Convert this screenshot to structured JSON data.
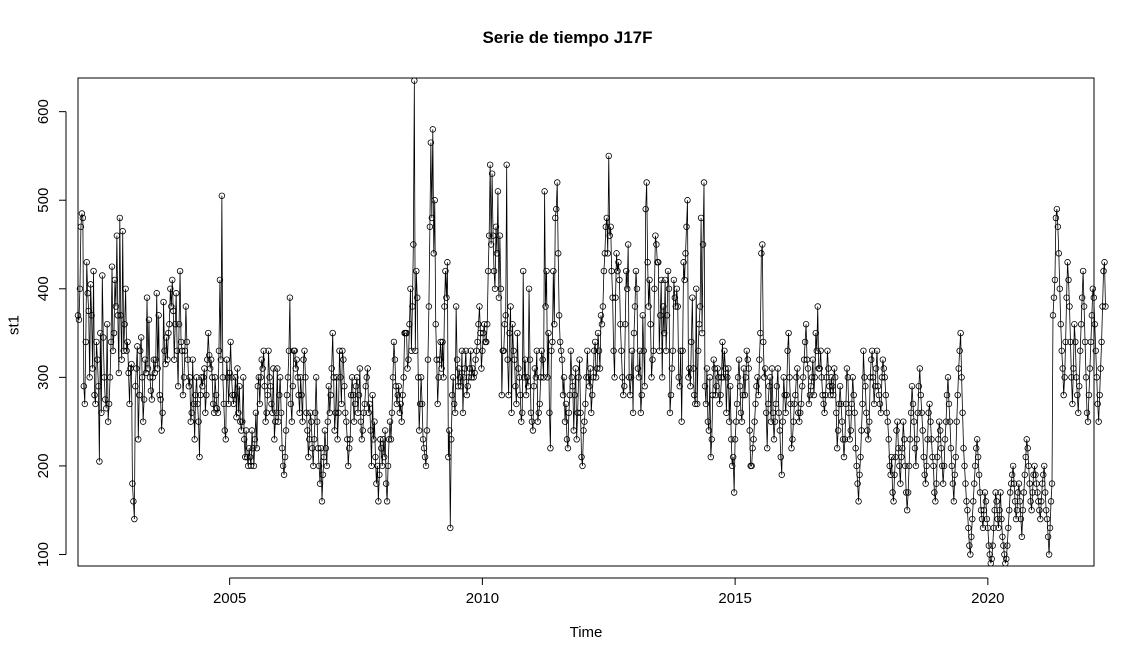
{
  "chart_data": {
    "type": "line",
    "title": "Serie de tiempo J17F",
    "xlabel": "Time",
    "ylabel": "st1",
    "xlim": [
      2002.0,
      2022.1
    ],
    "ylim": [
      87,
      638
    ],
    "x_ticks": [
      2005,
      2010,
      2015,
      2020
    ],
    "y_ticks": [
      100,
      200,
      300,
      400,
      500,
      600
    ],
    "markers": "open-circle",
    "grid": false,
    "legend": "none",
    "series": [
      {
        "start": 2002.0,
        "frequency": 52,
        "values": [
          370,
          365,
          400,
          470,
          485,
          480,
          290,
          270,
          340,
          430,
          395,
          375,
          300,
          405,
          370,
          310,
          420,
          280,
          270,
          340,
          320,
          290,
          205,
          350,
          260,
          415,
          345,
          300,
          275,
          265,
          360,
          250,
          270,
          300,
          340,
          425,
          330,
          350,
          410,
          380,
          460,
          370,
          305,
          480,
          370,
          320,
          465,
          330,
          360,
          400,
          330,
          340,
          305,
          270,
          310,
          315,
          180,
          160,
          140,
          290,
          310,
          335,
          230,
          280,
          330,
          345,
          300,
          250,
          275,
          320,
          305,
          390,
          310,
          365,
          300,
          285,
          275,
          300,
          320,
          305,
          320,
          395,
          310,
          370,
          280,
          275,
          240,
          260,
          385,
          330,
          315,
          345,
          320,
          350,
          360,
          400,
          380,
          410,
          375,
          320,
          360,
          395,
          330,
          290,
          360,
          420,
          340,
          330,
          280,
          300,
          330,
          380,
          340,
          320,
          290,
          300,
          250,
          260,
          320,
          270,
          230,
          280,
          300,
          270,
          250,
          210,
          280,
          300,
          290,
          300,
          310,
          260,
          280,
          320,
          350,
          325,
          310,
          320,
          300,
          270,
          260,
          300,
          280,
          265,
          260,
          330,
          410,
          320,
          505,
          300,
          270,
          240,
          230,
          320,
          300,
          270,
          305,
          340,
          300,
          280,
          270,
          280,
          300,
          255,
          310,
          260,
          290,
          250,
          240,
          250,
          300,
          230,
          210,
          240,
          210,
          200,
          220,
          210,
          200,
          240,
          220,
          200,
          230,
          260,
          220,
          290,
          300,
          270,
          300,
          320,
          310,
          330,
          290,
          250,
          260,
          280,
          330,
          300,
          290,
          270,
          260,
          310,
          230,
          250,
          260,
          310,
          250,
          280,
          300,
          260,
          220,
          200,
          190,
          210,
          240,
          280,
          300,
          330,
          390,
          270,
          250,
          290,
          330,
          330,
          310,
          320,
          300,
          280,
          260,
          300,
          280,
          250,
          320,
          330,
          300,
          260,
          240,
          210,
          230,
          260,
          250,
          220,
          200,
          230,
          260,
          300,
          250,
          220,
          200,
          180,
          220,
          160,
          190,
          210,
          240,
          220,
          200,
          250,
          290,
          260,
          280,
          310,
          350,
          300,
          240,
          260,
          300,
          230,
          260,
          330,
          300,
          270,
          330,
          320,
          290,
          260,
          250,
          230,
          200,
          220,
          230,
          280,
          300,
          280,
          250,
          270,
          290,
          300,
          260,
          280,
          310,
          250,
          230,
          240,
          260,
          270,
          290,
          300,
          310,
          260,
          270,
          240,
          200,
          280,
          230,
          250,
          210,
          180,
          200,
          160,
          190,
          230,
          220,
          200,
          230,
          210,
          240,
          180,
          160,
          200,
          230,
          250,
          230,
          260,
          300,
          340,
          320,
          290,
          270,
          280,
          290,
          260,
          270,
          250,
          280,
          300,
          350,
          350,
          350,
          310,
          320,
          360,
          400,
          330,
          380,
          450,
          635,
          330,
          420,
          390,
          300,
          240,
          270,
          300,
          270,
          230,
          220,
          210,
          200,
          240,
          320,
          380,
          470,
          565,
          480,
          580,
          440,
          500,
          360,
          320,
          270,
          300,
          320,
          340,
          310,
          340,
          300,
          380,
          420,
          390,
          430,
          210,
          240,
          130,
          230,
          280,
          300,
          270,
          260,
          380,
          320,
          290,
          310,
          300,
          290,
          330,
          260,
          300,
          310,
          330,
          280,
          290,
          300,
          310,
          330,
          300,
          310,
          300,
          305,
          320,
          330,
          340,
          360,
          380,
          350,
          310,
          330,
          350,
          360,
          340,
          340,
          360,
          420,
          460,
          540,
          450,
          530,
          460,
          420,
          400,
          470,
          440,
          510,
          390,
          460,
          400,
          280,
          330,
          330,
          360,
          370,
          540,
          320,
          280,
          350,
          380,
          260,
          360,
          330,
          320,
          290,
          270,
          350,
          310,
          300,
          280,
          250,
          260,
          420,
          300,
          320,
          280,
          300,
          290,
          400,
          320,
          260,
          250,
          240,
          290,
          310,
          300,
          330,
          250,
          260,
          270,
          300,
          330,
          320,
          300,
          510,
          380,
          420,
          300,
          350,
          260,
          220,
          330,
          340,
          420,
          360,
          480,
          490,
          520,
          440,
          370,
          340,
          330,
          320,
          280,
          300,
          250,
          270,
          230,
          220,
          260,
          280,
          330,
          300,
          290,
          240,
          280,
          310,
          230,
          260,
          300,
          320,
          260,
          210,
          200,
          240,
          250,
          270,
          300,
          330,
          300,
          290,
          310,
          260,
          280,
          300,
          330,
          340,
          300,
          310,
          350,
          330,
          310,
          370,
          360,
          380,
          420,
          440,
          470,
          480,
          440,
          550,
          460,
          470,
          420,
          390,
          330,
          300,
          390,
          440,
          420,
          430,
          410,
          360,
          330,
          300,
          280,
          290,
          360,
          420,
          400,
          450,
          300,
          280,
          300,
          330,
          260,
          350,
          380,
          420,
          400,
          310,
          300,
          330,
          260,
          280,
          370,
          330,
          290,
          490,
          520,
          430,
          380,
          410,
          360,
          300,
          320,
          330,
          400,
          460,
          450,
          430,
          430,
          330,
          370,
          410,
          300,
          380,
          350,
          410,
          330,
          370,
          420,
          400,
          260,
          280,
          310,
          330,
          410,
          390,
          380,
          400,
          380,
          300,
          290,
          330,
          250,
          330,
          430,
          410,
          440,
          470,
          500,
          300,
          310,
          290,
          340,
          390,
          310,
          280,
          270,
          400,
          270,
          330,
          360,
          380,
          480,
          350,
          450,
          520,
          290,
          270,
          310,
          250,
          240,
          300,
          210,
          230,
          280,
          320,
          310,
          280,
          290,
          310,
          300,
          270,
          280,
          300,
          340,
          300,
          330,
          310,
          260,
          300,
          310,
          250,
          290,
          230,
          200,
          210,
          170,
          230,
          250,
          270,
          300,
          320,
          290,
          260,
          250,
          280,
          310,
          280,
          300,
          330,
          320,
          310,
          240,
          200,
          200,
          220,
          230,
          250,
          270,
          290,
          300,
          280,
          320,
          350,
          440,
          450,
          340,
          300,
          310,
          260,
          220,
          270,
          290,
          300,
          250,
          310,
          260,
          230,
          250,
          270,
          290,
          310,
          260,
          240,
          210,
          190,
          250,
          300,
          280,
          260,
          280,
          330,
          350,
          300,
          270,
          220,
          230,
          250,
          270,
          280,
          300,
          310,
          260,
          250,
          260,
          270,
          290,
          300,
          320,
          340,
          360,
          320,
          310,
          270,
          280,
          290,
          300,
          320,
          280,
          300,
          350,
          330,
          380,
          310,
          310,
          330,
          300,
          280,
          270,
          260,
          280,
          300,
          330,
          310,
          290,
          280,
          300,
          290,
          280,
          310,
          300,
          260,
          220,
          240,
          270,
          290,
          270,
          250,
          230,
          210,
          230,
          270,
          310,
          300,
          260,
          230,
          240,
          270,
          300,
          280,
          260,
          220,
          200,
          180,
          160,
          190,
          210,
          240,
          270,
          330,
          300,
          290,
          260,
          240,
          230,
          250,
          300,
          320,
          330,
          300,
          270,
          290,
          310,
          330,
          290,
          280,
          270,
          260,
          300,
          320,
          310,
          300,
          280,
          260,
          250,
          230,
          200,
          190,
          210,
          170,
          160,
          190,
          210,
          240,
          250,
          220,
          200,
          180,
          210,
          220,
          250,
          230,
          200,
          170,
          150,
          170,
          200,
          230,
          260,
          290,
          270,
          250,
          220,
          200,
          230,
          260,
          290,
          310,
          280,
          260,
          240,
          210,
          190,
          180,
          200,
          230,
          260,
          270,
          250,
          230,
          210,
          200,
          170,
          160,
          180,
          210,
          230,
          250,
          240,
          220,
          200,
          180,
          200,
          230,
          250,
          280,
          300,
          270,
          250,
          220,
          200,
          180,
          160,
          190,
          210,
          250,
          280,
          310,
          330,
          350,
          300,
          260,
          220,
          200,
          180,
          160,
          150,
          130,
          110,
          100,
          120,
          140,
          160,
          180,
          200,
          220,
          230,
          210,
          190,
          170,
          150,
          140,
          130,
          150,
          170,
          160,
          140,
          130,
          110,
          100,
          90,
          95,
          110,
          130,
          150,
          170,
          160,
          140,
          130,
          150,
          170,
          140,
          120,
          110,
          100,
          90,
          95,
          110,
          130,
          150,
          170,
          180,
          190,
          200,
          180,
          160,
          140,
          150,
          170,
          180,
          160,
          140,
          120,
          150,
          170,
          190,
          210,
          230,
          220,
          200,
          180,
          160,
          150,
          170,
          190,
          200,
          190,
          180,
          170,
          160,
          150,
          140,
          160,
          180,
          190,
          200,
          170,
          150,
          140,
          120,
          100,
          130,
          160,
          180,
          370,
          390,
          410,
          480,
          490,
          470,
          440,
          400,
          360,
          330,
          310,
          280,
          300,
          340,
          390,
          430,
          410,
          380,
          340,
          300,
          270,
          310,
          360,
          340,
          300,
          280,
          260,
          290,
          330,
          360,
          390,
          420,
          380,
          340,
          300,
          260,
          250,
          280,
          310,
          340,
          370,
          400,
          390,
          360,
          330,
          300,
          270,
          250,
          280,
          310,
          340,
          380,
          420,
          430,
          380
        ]
      }
    ]
  }
}
